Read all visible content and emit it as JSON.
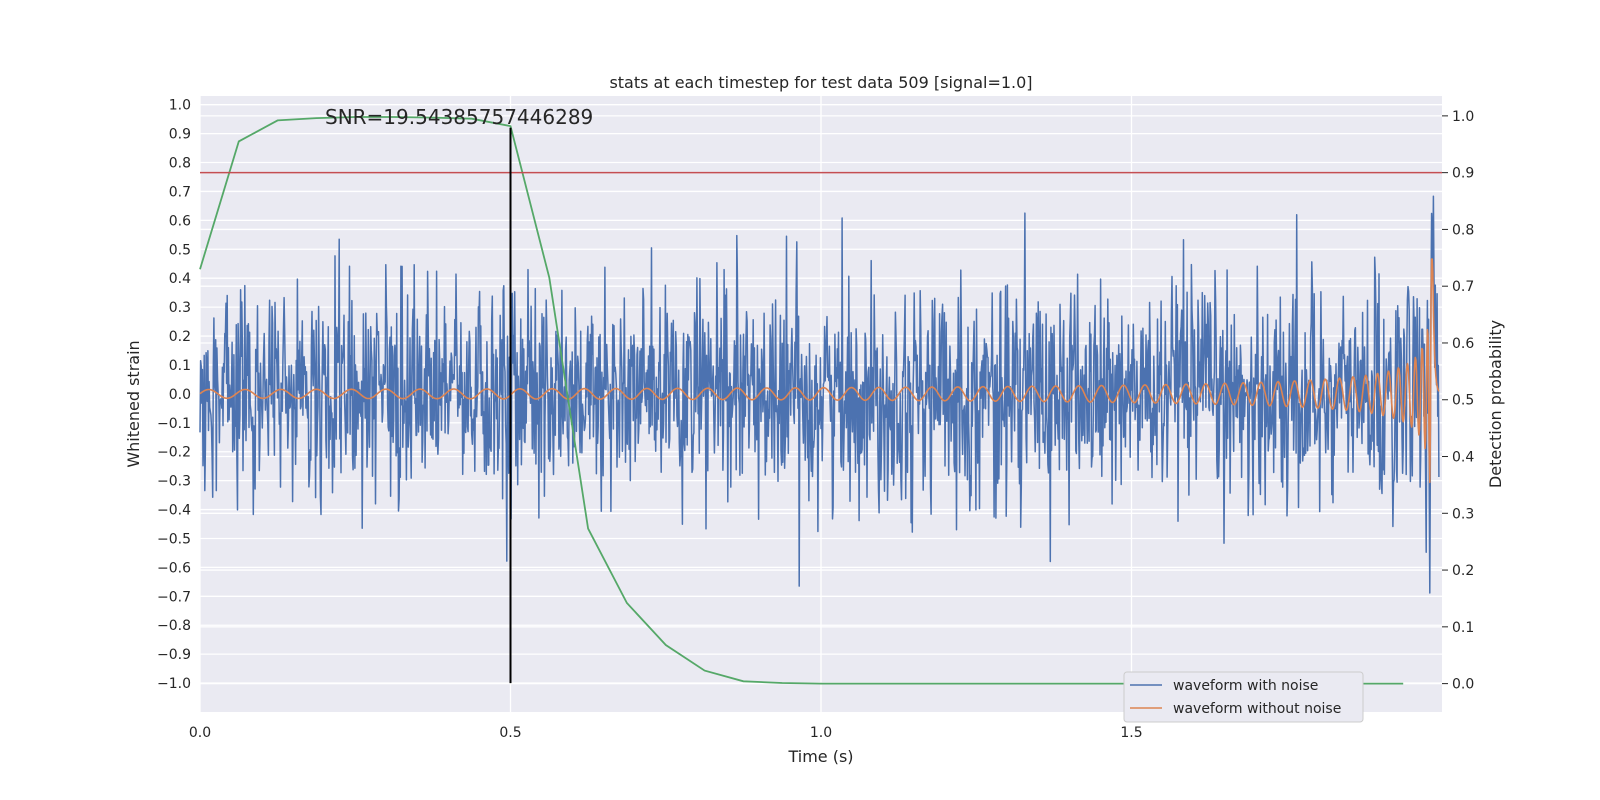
{
  "chart_data": {
    "type": "line",
    "title": "stats at each timestep for test data 509 [signal=1.0]",
    "xlabel": "Time (s)",
    "ylabel": "Whitened strain",
    "ylabel_right": "Detection probability",
    "xlim": [
      0.0,
      2.0
    ],
    "ylim": [
      -1.1,
      1.03
    ],
    "ylim_right": [
      -0.05,
      1.035
    ],
    "x_ticks": [
      0.0,
      0.5,
      1.0,
      1.5
    ],
    "x_tick_labels": [
      "0.0",
      "0.5",
      "1.0",
      "1.5"
    ],
    "y_ticks": [
      1.0,
      0.9,
      0.8,
      0.7,
      0.6,
      0.5,
      0.4,
      0.3,
      0.2,
      0.1,
      0.0,
      -0.1,
      -0.2,
      -0.3,
      -0.4,
      -0.5,
      -0.6,
      -0.7,
      -0.8,
      -0.9,
      -1.0
    ],
    "y_tick_labels": [
      "1.0",
      "0.9",
      "0.8",
      "0.7",
      "0.6",
      "0.5",
      "0.4",
      "0.3",
      "0.2",
      "0.1",
      "0.0",
      "−0.1",
      "−0.2",
      "−0.3",
      "−0.4",
      "−0.5",
      "−0.6",
      "−0.7",
      "−0.8",
      "−0.9",
      "−1.0"
    ],
    "y_right_ticks": [
      1.0,
      0.9,
      0.8,
      0.7,
      0.6,
      0.5,
      0.4,
      0.3,
      0.2,
      0.1,
      0.0
    ],
    "y_right_tick_labels": [
      "1.0",
      "0.9",
      "0.8",
      "0.7",
      "0.6",
      "0.5",
      "0.4",
      "0.3",
      "0.2",
      "0.1",
      "0.0"
    ],
    "grid": true,
    "legend_position": "bottom-right",
    "annotation": "SNR=19.54385757446289",
    "series": [
      {
        "name": "waveform with noise",
        "color": "#4c72b0",
        "axis": "left",
        "kind": "noisy-waveform",
        "x_range": [
          0.0,
          1.995
        ],
        "approx_amplitude": 0.3,
        "approx_min": -1.0,
        "approx_max": 0.93
      },
      {
        "name": "waveform without noise",
        "color": "#dd8452",
        "axis": "left",
        "kind": "chirp",
        "x_range": [
          0.0,
          1.995
        ],
        "start_amplitude": 0.015,
        "peak_amplitude": 0.8,
        "merger_time": 1.985
      },
      {
        "name": "",
        "color": "#55a868",
        "axis": "right",
        "kind": "detection-probability",
        "x": [
          0.0,
          0.0625,
          0.125,
          0.1875,
          0.25,
          0.3125,
          0.375,
          0.4375,
          0.5,
          0.5625,
          0.625,
          0.6875,
          0.75,
          0.8125,
          0.875,
          0.9375,
          1.0,
          1.5,
          1.9375
        ],
        "y": [
          0.73,
          0.955,
          0.992,
          0.996,
          0.998,
          0.998,
          0.997,
          0.995,
          0.982,
          0.715,
          0.273,
          0.142,
          0.068,
          0.023,
          0.004,
          0.001,
          0.0,
          0.0,
          0.0
        ]
      }
    ],
    "threshold": {
      "axis": "right",
      "value": 0.9,
      "color": "#c44e52"
    },
    "vline": {
      "x": 0.5,
      "color": "#000000",
      "y_from": -1.0,
      "y_to": 0.92
    }
  }
}
